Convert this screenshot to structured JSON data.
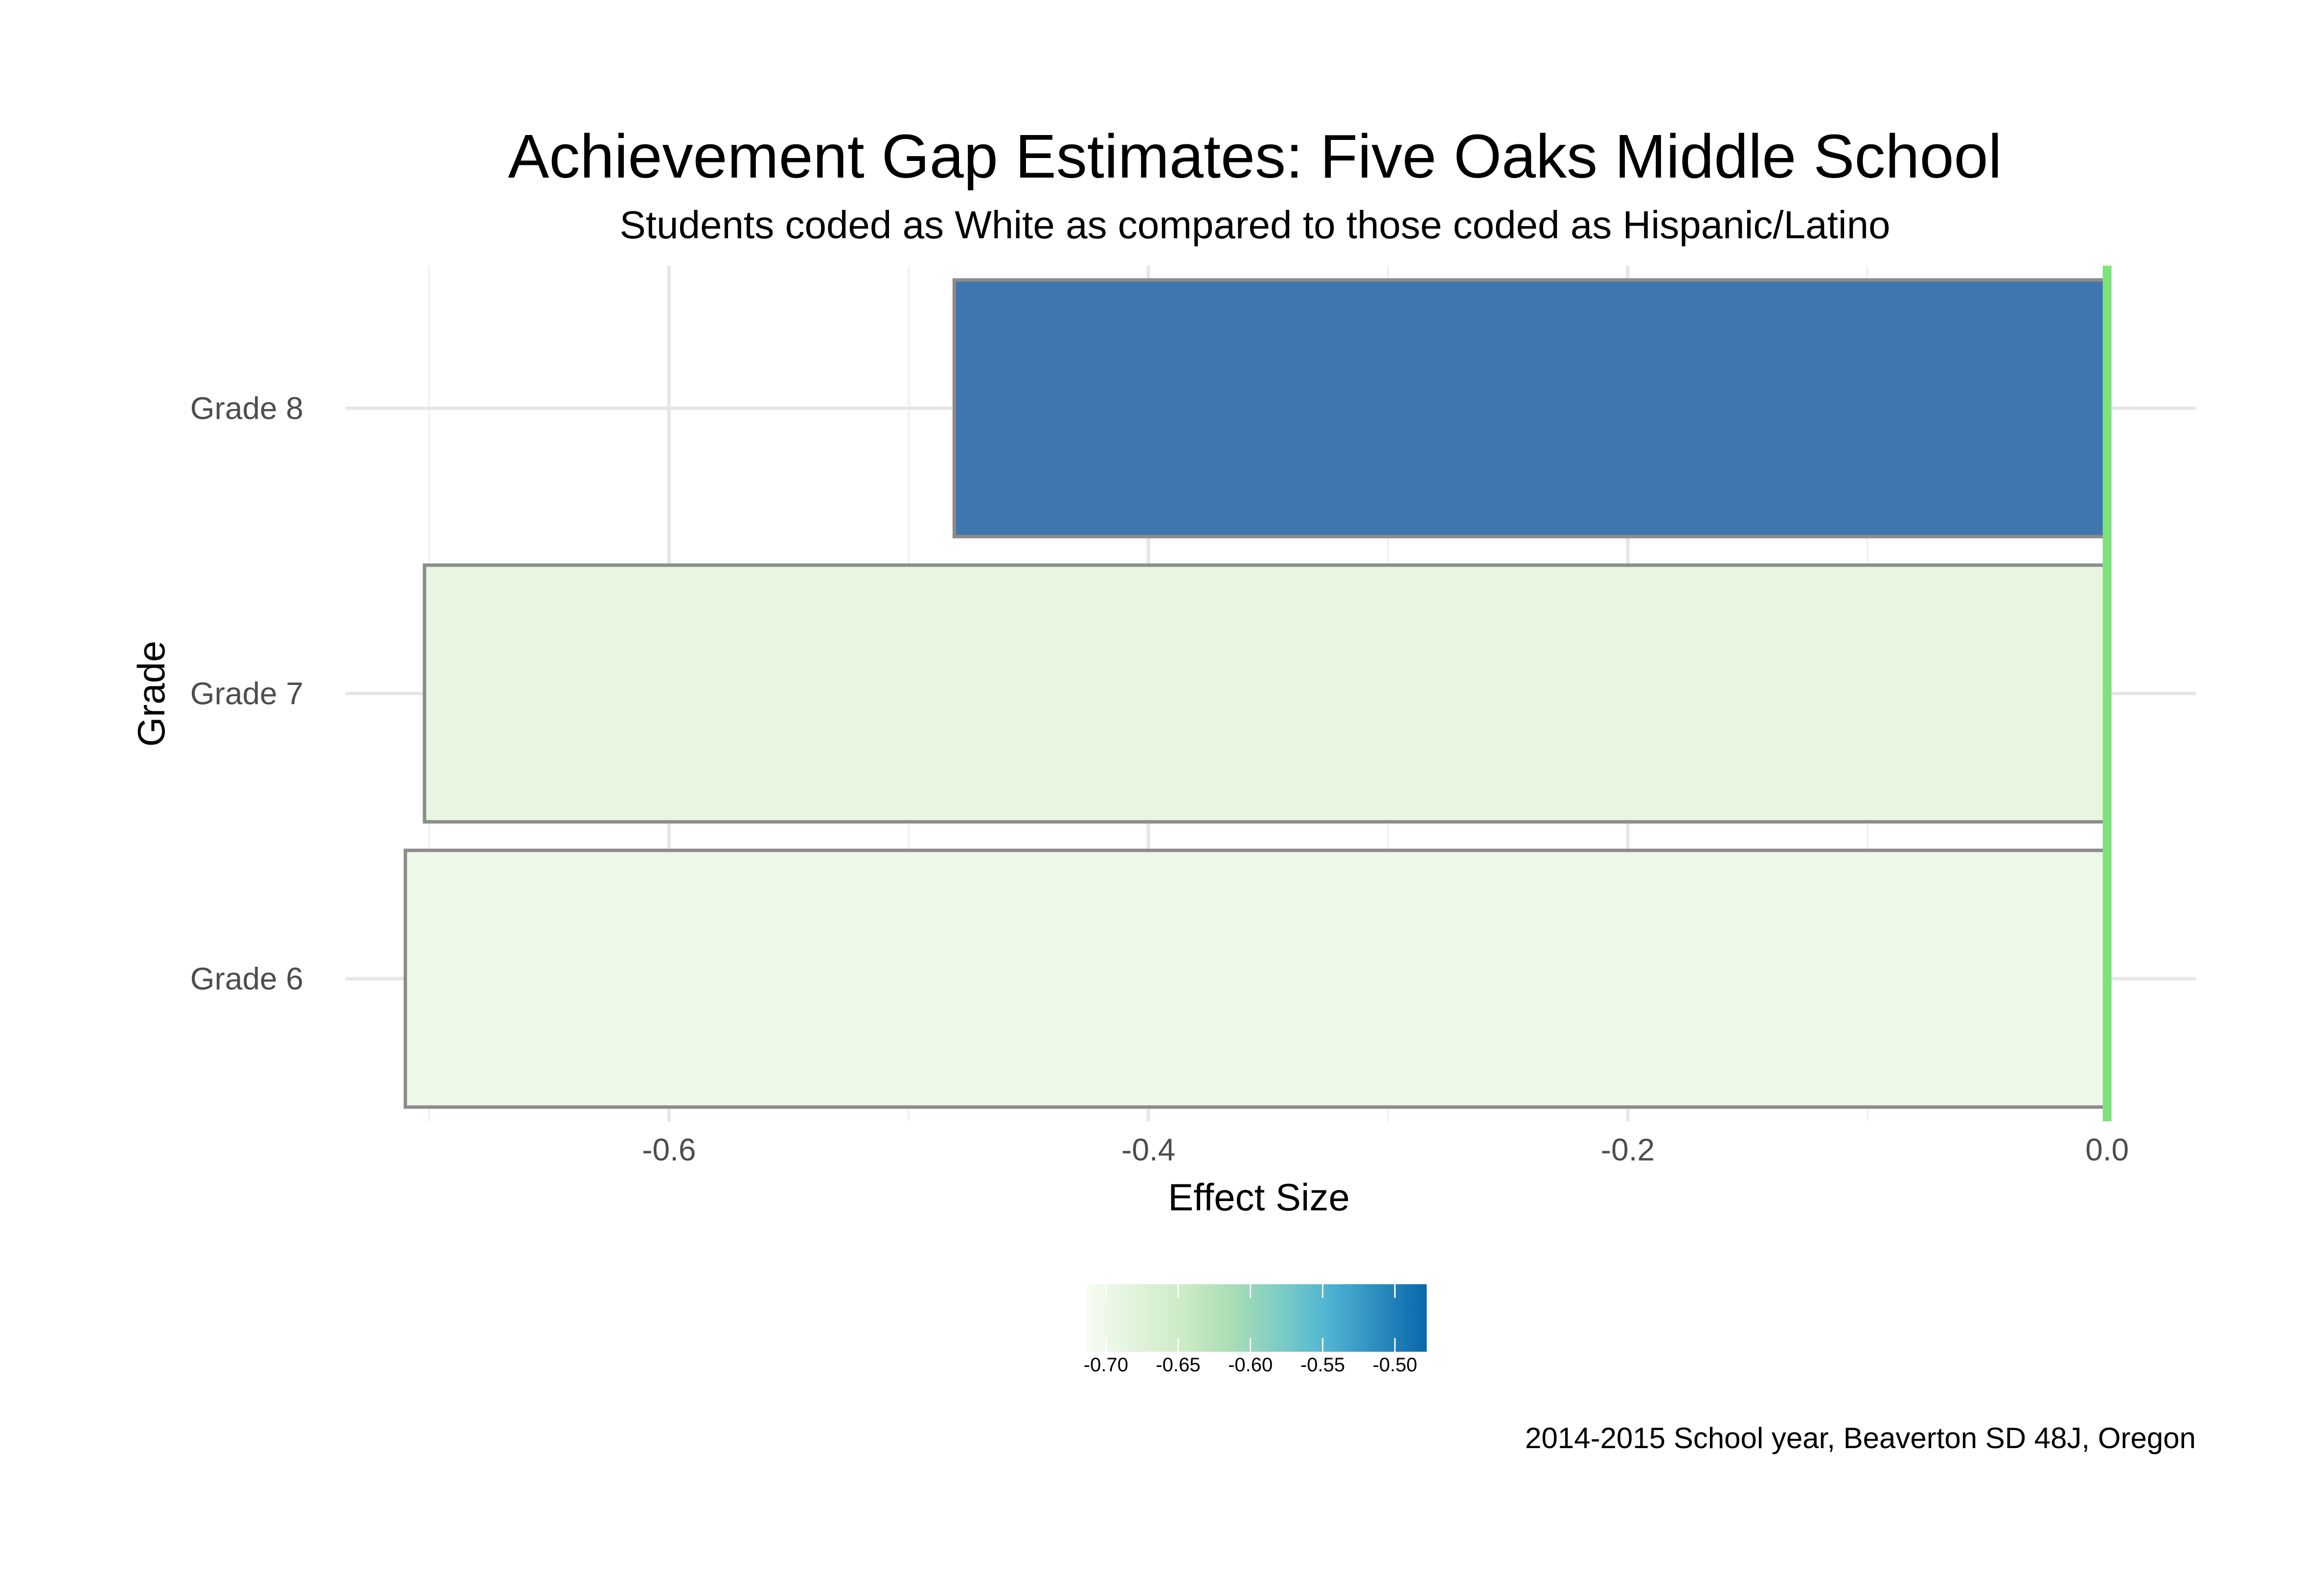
{
  "chart_data": {
    "type": "bar",
    "orientation": "horizontal",
    "title": "Achievement Gap Estimates: Five Oaks Middle School",
    "subtitle": "Students coded as White as compared to those coded as Hispanic/Latino",
    "xlabel": "Effect Size",
    "ylabel": "Grade",
    "caption": "2014-2015 School year, Beaverton SD 48J, Oregon",
    "categories": [
      "Grade 6",
      "Grade 7",
      "Grade 8"
    ],
    "values": [
      -0.71,
      -0.702,
      -0.481
    ],
    "xlim": [
      -0.735,
      0.037
    ],
    "xticks": [
      -0.6,
      -0.4,
      -0.2,
      0.0
    ],
    "xtick_labels": [
      "-0.6",
      "-0.4",
      "-0.2",
      "0.0"
    ],
    "reference_line": {
      "x": 0.0,
      "color": "#7ee37e"
    },
    "grid": true,
    "legend": {
      "type": "colorbar",
      "position": "bottom",
      "min": -0.713,
      "max": -0.478,
      "ticks": [
        -0.7,
        -0.65,
        -0.6,
        -0.55,
        -0.5
      ],
      "tick_labels": [
        "-0.70",
        "-0.65",
        "-0.60",
        "-0.55",
        "-0.50"
      ],
      "colors": [
        "#f7fcf0",
        "#e0f3db",
        "#ccebc5",
        "#a8ddb5",
        "#7bccc4",
        "#4eb3d3",
        "#2b8cbe",
        "#0868ac"
      ]
    },
    "bar_colors": [
      "#eef8e8",
      "#e8f5e0",
      "#3f76b0"
    ]
  }
}
